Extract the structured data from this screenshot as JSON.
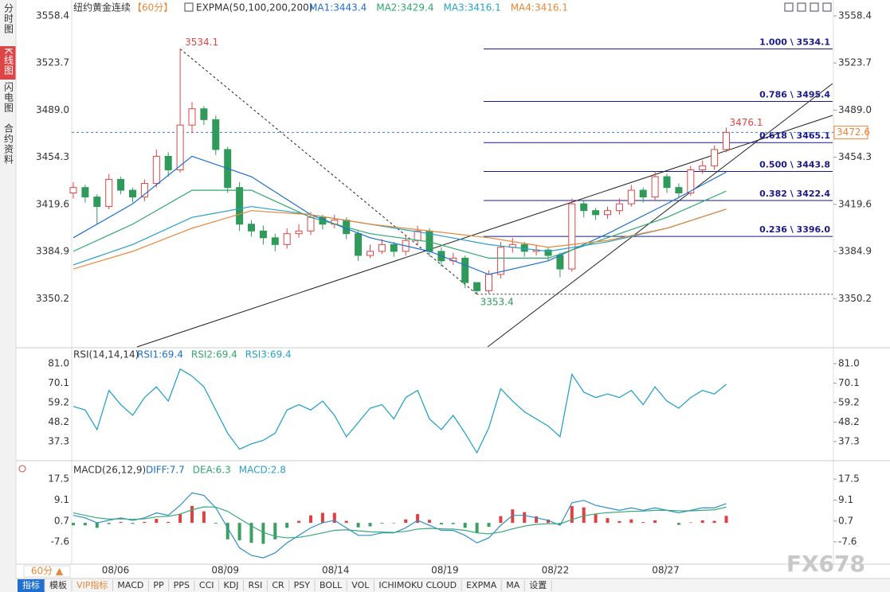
{
  "ui": {
    "sidebar": [
      "分时图",
      "K线图",
      "闪电图",
      "合约资料"
    ],
    "period": "60分 ▲",
    "tabs": [
      "指标",
      "模板",
      "VIP指标",
      "MACD",
      "PP",
      "PPS",
      "CCI",
      "KDJ",
      "RSI",
      "CR",
      "PSY",
      "BOLL",
      "VOL",
      "ICHIMOKU CLOUD",
      "EXPMA",
      "MA",
      "设置"
    ],
    "watermark": "FX678",
    "symbol": "纽约黄金连续",
    "interval": "【60分】",
    "indicator": "EXPMA(50,100,200,200)"
  },
  "chart_data": [
    {
      "type": "candlestick",
      "up_color": "#e04545",
      "down_color": "#2f9a5a",
      "ylim": [
        3314.6,
        3558.4
      ],
      "yticks": [
        3350.2,
        3384.9,
        3419.6,
        3454.3,
        {
          "value": 3489.0,
          "label": "3489.0"
        },
        3523.7,
        3558.4
      ],
      "xticks": [
        {
          "value": 3.56,
          "label": "08/06"
        },
        {
          "value": 12.8,
          "label": "08/09"
        },
        {
          "value": 22.1,
          "label": "08/14"
        },
        {
          "value": 31.3,
          "label": "08/19"
        },
        {
          "value": 40.6,
          "label": "08/22"
        },
        {
          "value": 49.9,
          "label": "08/27"
        }
      ],
      "open": [
        3428,
        3432,
        3425,
        3418,
        3438,
        3430,
        3425,
        3435,
        3455,
        3445,
        3478,
        3490,
        3482,
        3460,
        3432,
        3405,
        3400,
        3395,
        3390,
        3398,
        3400,
        3410,
        3405,
        3408,
        3398,
        3382,
        3385,
        3390,
        3385,
        3393,
        3400,
        3385,
        3378,
        3380,
        3362,
        3356,
        3368,
        3388,
        3390,
        3385,
        3386,
        3382,
        3372,
        3420,
        3415,
        3412,
        3415,
        3420,
        3430,
        3425,
        3440,
        3432,
        3428,
        3445,
        3448,
        3460
      ],
      "high": [
        3436,
        3434,
        3427,
        3442,
        3440,
        3432,
        3438,
        3460,
        3458,
        3534.1,
        3495,
        3492,
        3485,
        3462,
        3436,
        3408,
        3404,
        3398,
        3402,
        3405,
        3414,
        3412,
        3412,
        3410,
        3400,
        3390,
        3394,
        3392,
        3397,
        3404,
        3402,
        3388,
        3384,
        3382,
        3360,
        3371,
        3392,
        3395,
        3392,
        3390,
        3388,
        3384,
        3424,
        3422,
        3417,
        3418,
        3424,
        3434,
        3432,
        3444,
        3442,
        3435,
        3448,
        3452,
        3463,
        3476.1
      ],
      "low": [
        3424,
        3421,
        3405,
        3416,
        3427,
        3421,
        3422,
        3432,
        3440,
        3443,
        3472,
        3478,
        3456,
        3428,
        3400,
        3396,
        3390,
        3385,
        3387,
        3395,
        3397,
        3401,
        3402,
        3394,
        3378,
        3380,
        3383,
        3381,
        3382,
        3390,
        3381,
        3374,
        3375,
        3358,
        3353.4,
        3354,
        3365,
        3384,
        3381,
        3382,
        3378,
        3366,
        3370,
        3410,
        3408,
        3409,
        3412,
        3418,
        3421,
        3422,
        3428,
        3424,
        3426,
        3442,
        3445,
        3458
      ],
      "close": [
        3432,
        3425,
        3418,
        3438,
        3430,
        3425,
        3435,
        3455,
        3445,
        3478,
        3490,
        3482,
        3460,
        3432,
        3405,
        3400,
        3395,
        3390,
        3398,
        3400,
        3410,
        3405,
        3408,
        3398,
        3382,
        3385,
        3390,
        3385,
        3393,
        3400,
        3385,
        3378,
        3380,
        3362,
        3356,
        3368,
        3388,
        3390,
        3385,
        3386,
        3382,
        3372,
        3420,
        3415,
        3412,
        3415,
        3420,
        3430,
        3425,
        3440,
        3432,
        3428,
        3445,
        3448,
        3460,
        3472.6
      ],
      "ma_x": [
        0,
        5,
        10,
        15,
        20,
        25,
        30,
        35,
        40,
        45,
        50,
        55
      ],
      "ma_series": [
        {
          "label": "MA1:3443.4",
          "color": "#1e6fd0",
          "values": [
            3395,
            3420,
            3455,
            3440,
            3412,
            3395,
            3385,
            3368,
            3378,
            3398,
            3420,
            3443.4
          ]
        },
        {
          "label": "MA2:3429.4",
          "color": "#2ea86b",
          "values": [
            3385,
            3405,
            3430,
            3430,
            3410,
            3398,
            3392,
            3380,
            3380,
            3395,
            3410,
            3429.4
          ]
        },
        {
          "label": "MA3:3416.1",
          "color": "#28a0c8",
          "values": [
            3375,
            3390,
            3410,
            3418,
            3412,
            3405,
            3398,
            3390,
            3385,
            3392,
            3402,
            3416.1
          ]
        },
        {
          "label": "MA4:3416.1",
          "color": "#e8873a",
          "values": [
            3372,
            3385,
            3402,
            3415,
            3412,
            3405,
            3400,
            3395,
            3388,
            3393,
            3402,
            3416.1
          ]
        }
      ],
      "fib_levels": [
        {
          "value": 3534.1,
          "label": "1.000 \\ 3534.1"
        },
        {
          "value": 3495.4,
          "label": "0.786 \\ 3495.4"
        },
        {
          "value": 3465.1,
          "label": "0.618 \\ 3465.1"
        },
        {
          "value": 3443.8,
          "label": "0.500 \\ 3443.8"
        },
        {
          "value": 3422.4,
          "label": "0.382 \\ 3422.4"
        },
        {
          "value": 3396.0,
          "label": "0.236 \\ 3396.0"
        }
      ],
      "high_label": 3534.1,
      "low_label": 3353.4,
      "last_high_label": 3476.1,
      "last_price": 3472.6
    },
    {
      "type": "line",
      "title": "RSI(14,14,14)",
      "ylim": [
        27,
        88.6
      ],
      "yticks": [
        37.3,
        48.2,
        59.2,
        70.1,
        {
          "value": 81.0,
          "label": "81.0"
        }
      ],
      "legend": [
        {
          "label": "RSI1:69.4",
          "color": "#1e6fd0"
        },
        {
          "label": "RSI2:69.4",
          "color": "#2ea86b"
        },
        {
          "label": "RSI3:69.4",
          "color": "#28a0c8"
        }
      ],
      "series": [
        {
          "color": "#1a9cc8",
          "values": [
            57,
            55,
            44,
            66,
            58,
            52,
            62,
            68,
            60,
            78,
            74,
            68,
            55,
            42,
            33,
            36,
            38,
            42,
            55,
            58,
            55,
            60,
            52,
            40,
            48,
            56,
            58,
            50,
            62,
            66,
            50,
            44,
            52,
            42,
            31,
            45,
            67,
            60,
            54,
            50,
            46,
            40,
            75,
            65,
            62,
            64,
            62,
            66,
            58,
            68,
            60,
            56,
            62,
            66,
            64,
            69.4
          ]
        }
      ]
    },
    {
      "type": "macd",
      "title": "MACD(26,12,9)",
      "ylim": [
        -16.2,
        23.9
      ],
      "yticks": [
        -7.6,
        0.7,
        9.1,
        17.5
      ],
      "legend": [
        {
          "label": "DIFF:7.7",
          "color": "#1e6fd0"
        },
        {
          "label": "DEA:6.3",
          "color": "#2ea86b"
        },
        {
          "label": "MACD:2.8",
          "color": "#28a0c8"
        }
      ],
      "diff": {
        "color": "#2f8fc9",
        "values": [
          3,
          2,
          0,
          1,
          2,
          1,
          2,
          4,
          3,
          7,
          12,
          11,
          6,
          -2,
          -10,
          -13,
          -14,
          -12,
          -8,
          -5,
          -2,
          0,
          1,
          -2,
          -5,
          -5,
          -4,
          -4,
          -2,
          1,
          -1,
          -3,
          -3,
          -5,
          -8,
          -6,
          -1,
          3,
          3,
          2,
          1,
          -1,
          8,
          9,
          7,
          6,
          5,
          6,
          5,
          6,
          5,
          4,
          5,
          6,
          6,
          7.7
        ]
      },
      "dea": {
        "color": "#37a87c",
        "values": [
          4,
          3,
          2,
          1.5,
          1.6,
          1.4,
          1.6,
          2.4,
          2.6,
          3.5,
          5.2,
          6.4,
          6.3,
          4.6,
          1.7,
          -1.2,
          -3.8,
          -5.4,
          -6,
          -5.8,
          -5,
          -4,
          -3,
          -2.8,
          -3.2,
          -3.6,
          -3.7,
          -3.8,
          -3.4,
          -2.5,
          -2.2,
          -2.4,
          -2.5,
          -3,
          -4,
          -4.4,
          -3.7,
          -2.4,
          -1.3,
          -0.6,
          -0.3,
          -0.4,
          1.3,
          2.8,
          3.6,
          4.1,
          4.3,
          4.6,
          4.7,
          5,
          5,
          4.8,
          4.8,
          5,
          5.2,
          6.3
        ]
      },
      "macd": {
        "up_color": "#e04040",
        "down_color": "#3aa060",
        "values": [
          -1,
          -1,
          -2,
          -0.5,
          0.4,
          -0.4,
          0.4,
          1.6,
          0.4,
          3.5,
          6.8,
          4.6,
          -0.3,
          -6.6,
          -7,
          -8,
          -8.4,
          -6.6,
          -2,
          0.8,
          3,
          4,
          4,
          0.8,
          -1.8,
          -1.4,
          -0.3,
          -0.2,
          1.4,
          3.5,
          1.2,
          -0.6,
          -0.5,
          -2,
          -4,
          -1.6,
          2.7,
          5.4,
          4.3,
          2.6,
          1.3,
          -0.6,
          6.7,
          6.2,
          3.4,
          1.9,
          0.7,
          1.4,
          0.3,
          1,
          0,
          -0.8,
          0.2,
          1,
          0.8,
          2.8
        ]
      }
    }
  ]
}
